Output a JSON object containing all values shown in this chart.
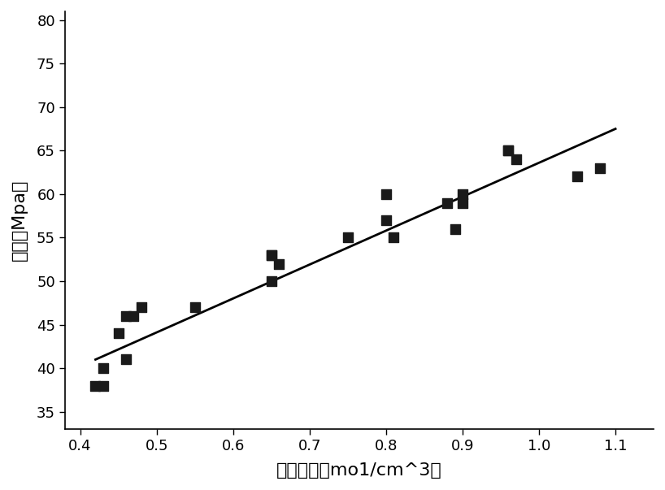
{
  "scatter_x": [
    0.42,
    0.43,
    0.43,
    0.45,
    0.46,
    0.46,
    0.47,
    0.48,
    0.55,
    0.65,
    0.65,
    0.65,
    0.66,
    0.75,
    0.8,
    0.8,
    0.81,
    0.88,
    0.89,
    0.9,
    0.9,
    0.96,
    0.96,
    0.97,
    1.05,
    1.08
  ],
  "scatter_y": [
    38,
    38,
    40,
    44,
    41,
    46,
    46,
    47,
    47,
    50,
    53,
    53,
    52,
    55,
    60,
    57,
    55,
    59,
    56,
    59,
    60,
    65,
    65,
    64,
    62,
    63
  ],
  "line_x": [
    0.42,
    1.1
  ],
  "line_y": [
    41.0,
    67.5
  ],
  "xlabel": "交联密度（mo1/cm^3）",
  "ylabel": "硬度（Mpa）",
  "xlim": [
    0.38,
    1.15
  ],
  "ylim": [
    33,
    81
  ],
  "xticks": [
    0.4,
    0.5,
    0.6,
    0.7,
    0.8,
    0.9,
    1.0,
    1.1
  ],
  "yticks": [
    35,
    40,
    45,
    50,
    55,
    60,
    65,
    70,
    75,
    80
  ],
  "marker_color": "#1a1a1a",
  "line_color": "#000000",
  "background_color": "#ffffff",
  "xlabel_fontsize": 16,
  "ylabel_fontsize": 16,
  "tick_fontsize": 13,
  "marker_size": 72,
  "line_width": 2.0
}
